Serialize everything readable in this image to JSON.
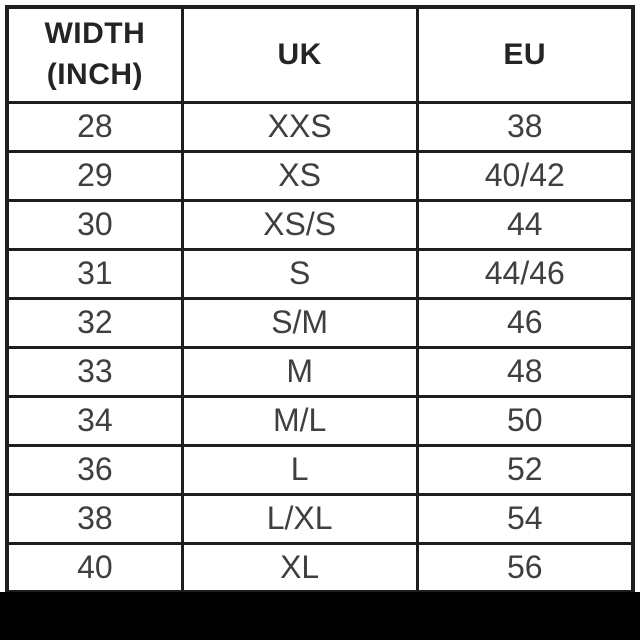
{
  "table": {
    "columns": [
      {
        "label_line1": "WIDTH",
        "label_line2": "(INCH)"
      },
      {
        "label": "UK"
      },
      {
        "label": "EU"
      }
    ],
    "rows": [
      {
        "width_inch": "28",
        "uk": "XXS",
        "eu": "38"
      },
      {
        "width_inch": "29",
        "uk": "XS",
        "eu": "40/42"
      },
      {
        "width_inch": "30",
        "uk": "XS/S",
        "eu": "44"
      },
      {
        "width_inch": "31",
        "uk": "S",
        "eu": "44/46"
      },
      {
        "width_inch": "32",
        "uk": "S/M",
        "eu": "46"
      },
      {
        "width_inch": "33",
        "uk": "M",
        "eu": "48"
      },
      {
        "width_inch": "34",
        "uk": "M/L",
        "eu": "50"
      },
      {
        "width_inch": "36",
        "uk": "L",
        "eu": "52"
      },
      {
        "width_inch": "38",
        "uk": "L/XL",
        "eu": "54"
      },
      {
        "width_inch": "40",
        "uk": "XL",
        "eu": "56"
      }
    ]
  },
  "colors": {
    "border": "#1e1e1e",
    "header_text": "#242424",
    "body_text": "#3f3f3f",
    "bottom_bar": "#000000",
    "background": "#ffffff"
  }
}
